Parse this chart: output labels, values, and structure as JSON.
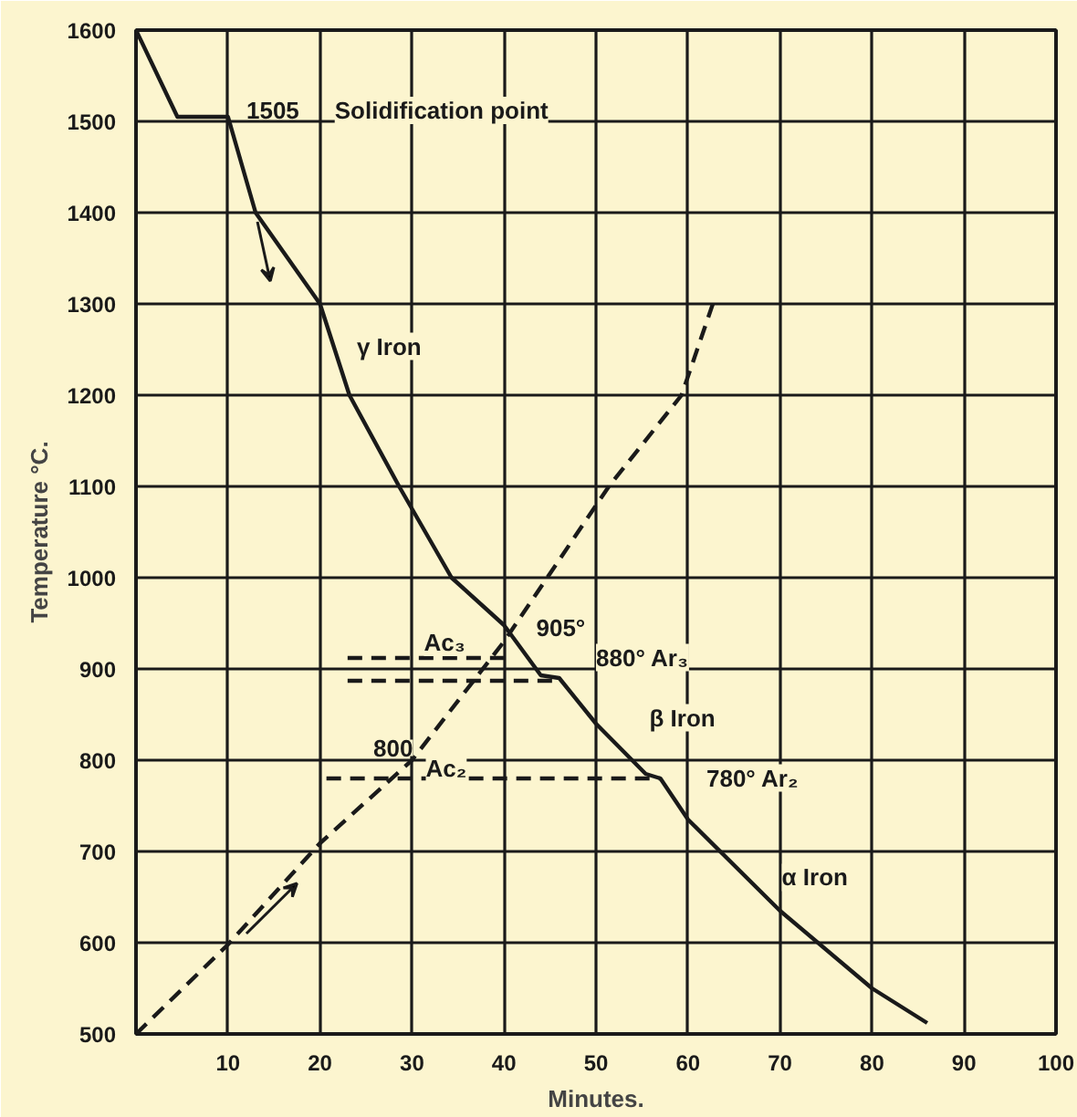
{
  "chart_data": {
    "type": "line",
    "xlabel": "Minutes.",
    "ylabel": "Temperature °C.",
    "xlim": [
      0,
      100
    ],
    "ylim": [
      500,
      1600
    ],
    "xticks": [
      10,
      20,
      30,
      40,
      50,
      60,
      70,
      80,
      90,
      100
    ],
    "yticks": [
      500,
      600,
      700,
      800,
      900,
      1000,
      1100,
      1200,
      1300,
      1400,
      1500,
      1600
    ],
    "grid": true,
    "series": [
      {
        "color": "#1a1a1a",
        "line_style": "solid",
        "x": [
          0,
          4.5,
          10,
          13,
          20,
          23.2,
          28.6,
          34.3,
          40,
          44,
          46,
          50,
          55.4,
          57,
          60,
          70,
          80,
          86
        ],
        "values": [
          1600,
          1505,
          1505,
          1400,
          1300,
          1200,
          1100,
          1000,
          948,
          893,
          890,
          840,
          785,
          780,
          735,
          635,
          550,
          512
        ]
      },
      {
        "color": "#1a1a1a",
        "line_style": "dashed",
        "x": [
          0,
          10,
          20,
          30,
          40,
          51.4,
          59.3,
          62.7
        ],
        "values": [
          500,
          598,
          709,
          800,
          930,
          1100,
          1200,
          1300
        ]
      },
      {
        "color": "#1a1a1a",
        "line_style": "dashed",
        "x": [
          23,
          40
        ],
        "values": [
          912,
          912
        ]
      },
      {
        "color": "#1a1a1a",
        "line_style": "dashed",
        "x": [
          23,
          46
        ],
        "values": [
          887,
          887
        ]
      },
      {
        "color": "#1a1a1a",
        "line_style": "dashed",
        "x": [
          20.7,
          57
        ],
        "values": [
          780,
          780
        ]
      }
    ],
    "annotations": [
      "1505",
      "Solidification point",
      "γ Iron",
      "Ac₃",
      "905°",
      "880° Ar₃",
      "800",
      "Ac₂",
      "β Iron",
      "780° Ar₂",
      "α Iron"
    ]
  }
}
